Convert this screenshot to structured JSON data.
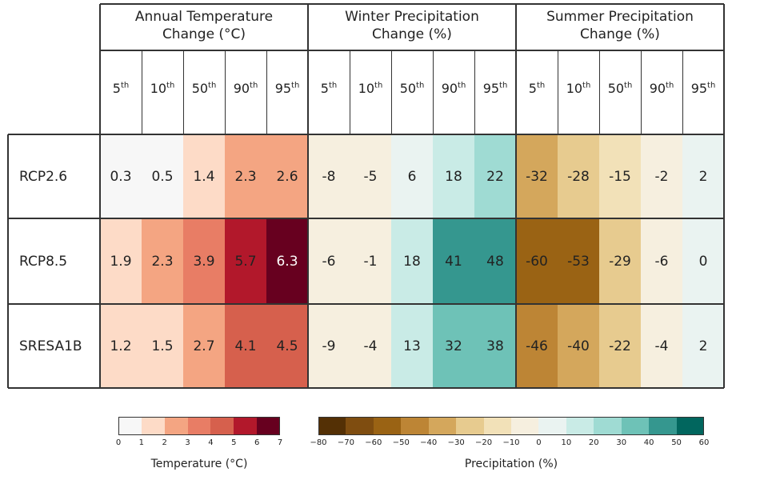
{
  "chart_data": {
    "type": "heatmap",
    "groups": [
      {
        "title_line1": "Annual Temperature",
        "title_line2": "Change (°C)",
        "scale": "temperature"
      },
      {
        "title_line1": "Winter Precipitation",
        "title_line2": "Change (%)",
        "scale": "precipitation"
      },
      {
        "title_line1": "Summer Precipitation",
        "title_line2": "Change (%)",
        "scale": "precipitation"
      }
    ],
    "percentiles": [
      {
        "num": "5",
        "suffix": "th"
      },
      {
        "num": "10",
        "suffix": "th"
      },
      {
        "num": "50",
        "suffix": "th"
      },
      {
        "num": "90",
        "suffix": "th"
      },
      {
        "num": "95",
        "suffix": "th"
      }
    ],
    "rows": [
      {
        "name": "RCP2.6",
        "values": [
          0.3,
          0.5,
          1.4,
          2.3,
          2.6,
          -8,
          -5,
          6,
          18,
          22,
          -32,
          -28,
          -15,
          -2,
          2
        ]
      },
      {
        "name": "RCP8.5",
        "values": [
          1.9,
          2.3,
          3.9,
          5.7,
          6.3,
          -6,
          -1,
          18,
          41,
          48,
          -60,
          -53,
          -29,
          -6,
          0
        ]
      },
      {
        "name": "SRESA1B",
        "values": [
          1.2,
          1.5,
          2.7,
          4.1,
          4.5,
          -9,
          -4,
          13,
          32,
          38,
          -46,
          -40,
          -22,
          -4,
          2
        ]
      }
    ],
    "colorbars": [
      {
        "name": "temperature",
        "label": "Temperature (°C)",
        "ticks": [
          "0",
          "1",
          "2",
          "3",
          "4",
          "5",
          "6",
          "7"
        ],
        "range": [
          0,
          7
        ],
        "colors": [
          "#f7f7f7",
          "#fddbc7",
          "#f4a582",
          "#e87d65",
          "#d6604d",
          "#b2182b",
          "#67001f"
        ]
      },
      {
        "name": "precipitation",
        "label": "Precipitation (%)",
        "ticks": [
          "−80",
          "−70",
          "−60",
          "−50",
          "−40",
          "−30",
          "−20",
          "−10",
          "0",
          "10",
          "20",
          "30",
          "40",
          "50",
          "60"
        ],
        "range": [
          -80,
          60
        ],
        "colors": [
          "#543005",
          "#7f4d10",
          "#9a6314",
          "#bd8535",
          "#d4a75c",
          "#e7cb8f",
          "#f2e1b8",
          "#f6efdf",
          "#eaf3f1",
          "#c9ebe6",
          "#9fdbd3",
          "#6ec2b7",
          "#35978f",
          "#01665e"
        ]
      }
    ]
  }
}
